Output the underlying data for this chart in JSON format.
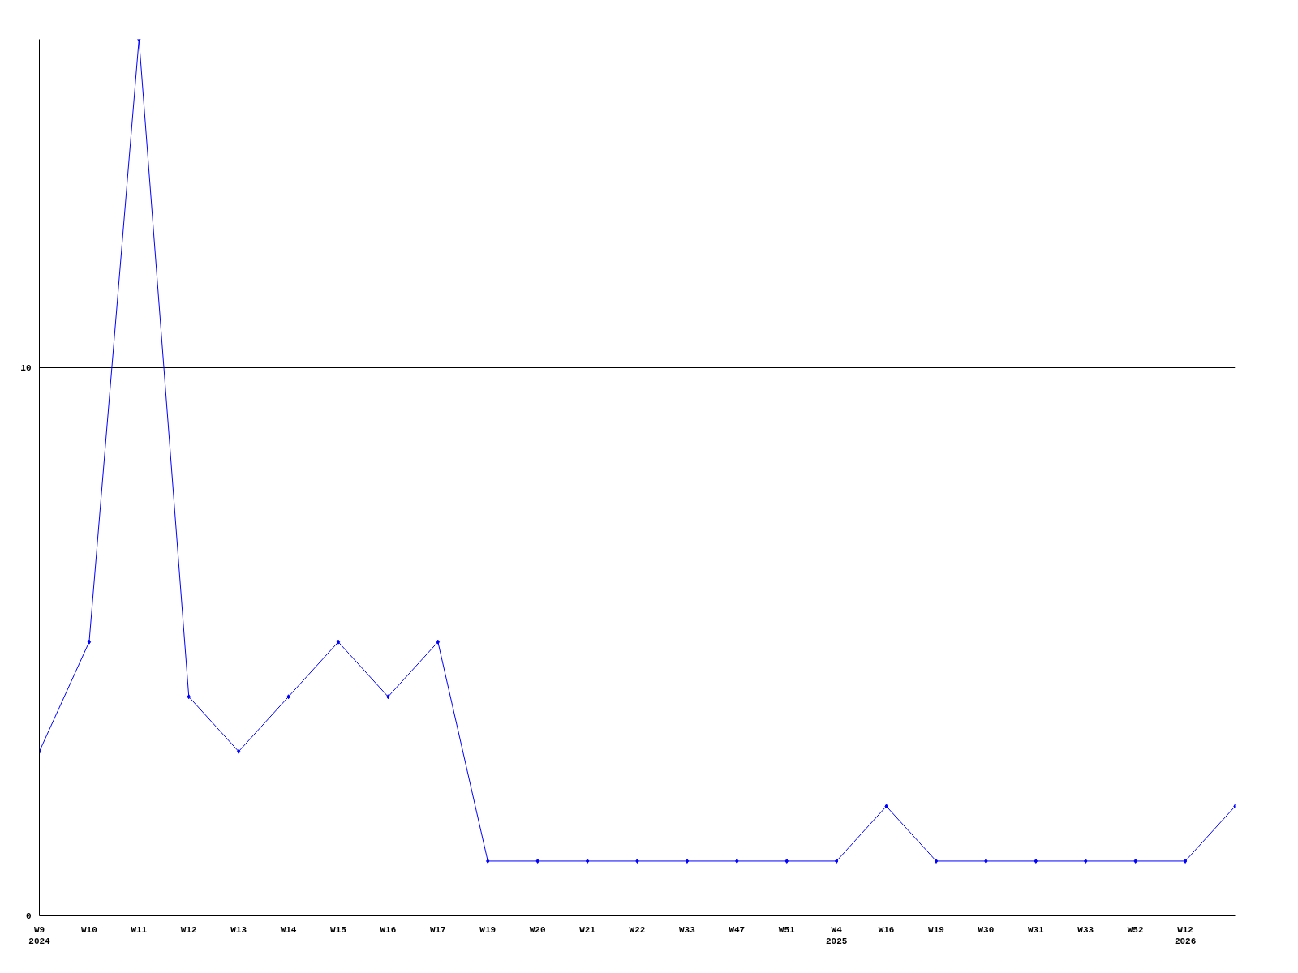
{
  "chart_data": {
    "type": "line",
    "categories": [
      "W9\n2024",
      "W10",
      "W11",
      "W12",
      "W13",
      "W14",
      "W15",
      "W16",
      "W17",
      "W19",
      "W20",
      "W21",
      "W22",
      "W33",
      "W47",
      "W51",
      "W4\n2025",
      "W16",
      "W19",
      "W30",
      "W31",
      "W33",
      "W52",
      "W12\n2026",
      null
    ],
    "series": [
      {
        "color": "#0000ff",
        "values": [
          3,
          5,
          16,
          4,
          3,
          4,
          5,
          4,
          5,
          1,
          1,
          1,
          1,
          1,
          1,
          1,
          1,
          2,
          1,
          1,
          1,
          1,
          1,
          1,
          2
        ]
      }
    ],
    "ylim": [
      0,
      16
    ],
    "yticks": [
      0,
      10
    ],
    "grid": "y",
    "marker": "diamond",
    "line_style": "solid"
  }
}
